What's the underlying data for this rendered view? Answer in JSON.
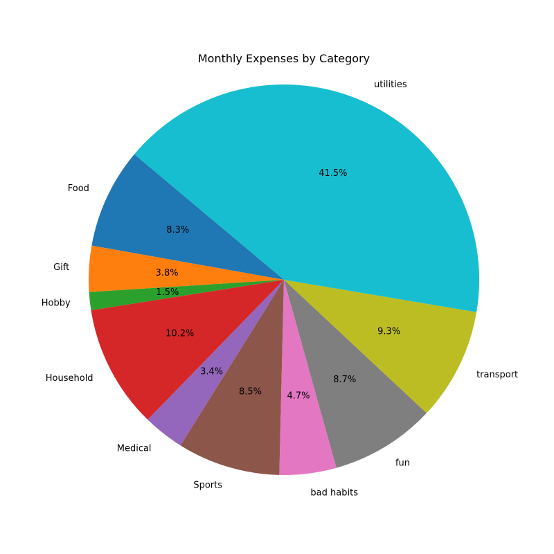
{
  "chart_data": {
    "type": "pie",
    "title": "Monthly Expenses by Category",
    "start_angle_deg": 140,
    "direction": "counterclockwise",
    "slices": [
      {
        "label": "Food",
        "percent": 8.3,
        "percent_label": "8.3%",
        "color": "#1f77b4"
      },
      {
        "label": "Gift",
        "percent": 3.8,
        "percent_label": "3.8%",
        "color": "#ff7f0e"
      },
      {
        "label": "Hobby",
        "percent": 1.5,
        "percent_label": "1.5%",
        "color": "#2ca02c"
      },
      {
        "label": "Household",
        "percent": 10.2,
        "percent_label": "10.2%",
        "color": "#d62728"
      },
      {
        "label": "Medical",
        "percent": 3.4,
        "percent_label": "3.4%",
        "color": "#9467bd"
      },
      {
        "label": "Sports",
        "percent": 8.5,
        "percent_label": "8.5%",
        "color": "#8c564b"
      },
      {
        "label": "bad habits",
        "percent": 4.7,
        "percent_label": "4.7%",
        "color": "#e377c2"
      },
      {
        "label": "fun",
        "percent": 8.7,
        "percent_label": "8.7%",
        "color": "#7f7f7f"
      },
      {
        "label": "transport",
        "percent": 9.3,
        "percent_label": "9.3%",
        "color": "#bcbd22"
      },
      {
        "label": "utilities",
        "percent": 41.5,
        "percent_label": "41.5%",
        "color": "#17becf"
      }
    ]
  }
}
